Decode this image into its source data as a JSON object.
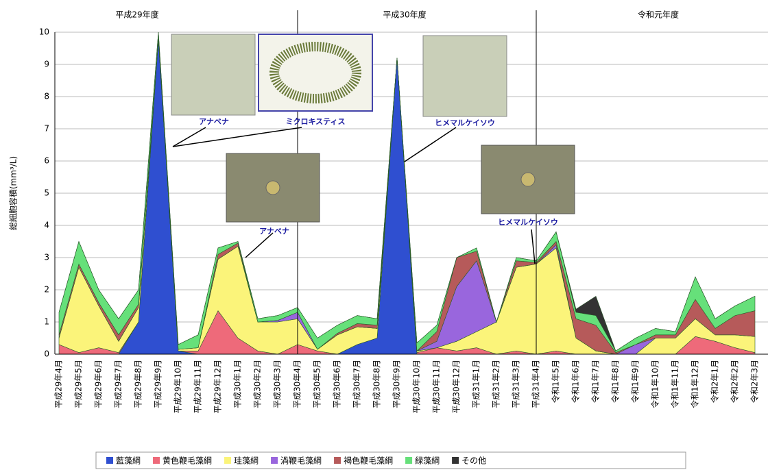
{
  "chart_data": {
    "type": "stacked_area",
    "year_labels": [
      "平成29年度",
      "平成30年度",
      "令和元年度"
    ],
    "ylabel": "総細胞容積(mm³/L)",
    "annotations": [
      "アナベナ",
      "ミクロキスティス",
      "ヒメマルケイソウ",
      "アナベナ",
      "ヒメマルケイソウ"
    ],
    "categories": [
      "平成29年4月",
      "平成29年5月",
      "平成29年6月",
      "平成29年7月",
      "平成29年8月",
      "平成29年9月",
      "平成29年10月",
      "平成29年11月",
      "平成29年12月",
      "平成30年1月",
      "平成30年2月",
      "平成30年3月",
      "平成30年4月",
      "平成30年5月",
      "平成30年6月",
      "平成30年7月",
      "平成30年8月",
      "平成30年9月",
      "平成30年10月",
      "平成30年11月",
      "平成30年12月",
      "平成31年1月",
      "平成31年2月",
      "平成31年3月",
      "平成31年4月",
      "令和1年5月",
      "令和1年6月",
      "令和1年7月",
      "令和1年8月",
      "令和1年9月",
      "令和1年10月",
      "令和1年11月",
      "令和1年12月",
      "令和2年1月",
      "令和2年2月",
      "令和2年3月"
    ],
    "series": [
      {
        "name": "藍藻綱",
        "color": "#2f4fd0",
        "values": [
          0,
          0,
          0,
          0,
          1.0,
          9.8,
          0.1,
          0,
          0,
          0,
          0,
          0,
          0,
          0,
          0,
          0.3,
          0.5,
          9.2,
          0,
          0,
          0,
          0,
          0,
          0,
          0,
          0,
          0,
          0,
          0,
          0,
          0,
          0,
          0,
          0,
          0,
          0
        ]
      },
      {
        "name": "黄色鞭毛藻綱",
        "color": "#ee6a7a",
        "values": [
          0.3,
          0.05,
          0.2,
          0.05,
          0,
          0,
          0,
          0.1,
          1.35,
          0.5,
          0.1,
          0,
          0.3,
          0.1,
          0,
          0,
          0,
          0,
          0.05,
          0.2,
          0.1,
          0.2,
          0,
          0.1,
          0,
          0.1,
          0,
          0,
          0,
          0,
          0,
          0,
          0.55,
          0.4,
          0.2,
          0.05
        ]
      },
      {
        "name": "珪藻綱",
        "color": "#fbf47a",
        "values": [
          0.2,
          2.65,
          1.3,
          0.35,
          0.45,
          0,
          0.05,
          0.1,
          1.6,
          2.85,
          0.9,
          1.0,
          0.8,
          0.05,
          0.6,
          0.55,
          0.3,
          0,
          0.05,
          0,
          0.3,
          0.5,
          1.0,
          2.6,
          2.8,
          3.2,
          0.5,
          0.1,
          0,
          0,
          0.5,
          0.5,
          0.55,
          0.2,
          0.4,
          0.5
        ]
      },
      {
        "name": "渦鞭毛藻綱",
        "color": "#9966dd",
        "values": [
          0,
          0,
          0,
          0,
          0,
          0,
          0,
          0,
          0,
          0,
          0,
          0.05,
          0.2,
          0,
          0,
          0,
          0,
          0,
          0,
          0.2,
          1.7,
          2.2,
          0,
          0,
          0,
          0.1,
          0,
          0,
          0,
          0.3,
          0,
          0,
          0,
          0,
          0,
          0
        ]
      },
      {
        "name": "褐色鞭毛藻綱",
        "color": "#b65a5a",
        "values": [
          0.1,
          0.1,
          0.1,
          0.2,
          0.1,
          0,
          0,
          0,
          0.15,
          0.1,
          0,
          0,
          0,
          0,
          0.05,
          0.1,
          0.1,
          0,
          0,
          0.3,
          0.9,
          0.3,
          0,
          0.2,
          0.05,
          0.1,
          0.6,
          0.8,
          0.05,
          0,
          0.1,
          0.1,
          0.6,
          0.2,
          0.6,
          0.8
        ]
      },
      {
        "name": "緑藻綱",
        "color": "#66e07a",
        "values": [
          0.7,
          0.7,
          0.4,
          0.5,
          0.45,
          0.2,
          0.15,
          0.4,
          0.2,
          0.05,
          0.1,
          0.15,
          0.15,
          0.35,
          0.25,
          0.25,
          0.2,
          0,
          0.25,
          0.2,
          0,
          0.1,
          0,
          0.1,
          0.05,
          0.3,
          0.2,
          0.3,
          0.05,
          0.2,
          0.2,
          0.1,
          0.7,
          0.3,
          0.3,
          0.45
        ]
      },
      {
        "name": "その他",
        "color": "#333333",
        "values": [
          0,
          0,
          0,
          0,
          0,
          0,
          0,
          0,
          0,
          0,
          0,
          0,
          0,
          0,
          0,
          0,
          0,
          0,
          0,
          0,
          0,
          0,
          0,
          0,
          0,
          0,
          0.1,
          0.6,
          0,
          0,
          0,
          0,
          0,
          0,
          0,
          0
        ]
      }
    ],
    "ylim": [
      0,
      10
    ],
    "yticks": [
      0,
      1,
      2,
      3,
      4,
      5,
      6,
      7,
      8,
      9,
      10
    ],
    "grid": true
  }
}
